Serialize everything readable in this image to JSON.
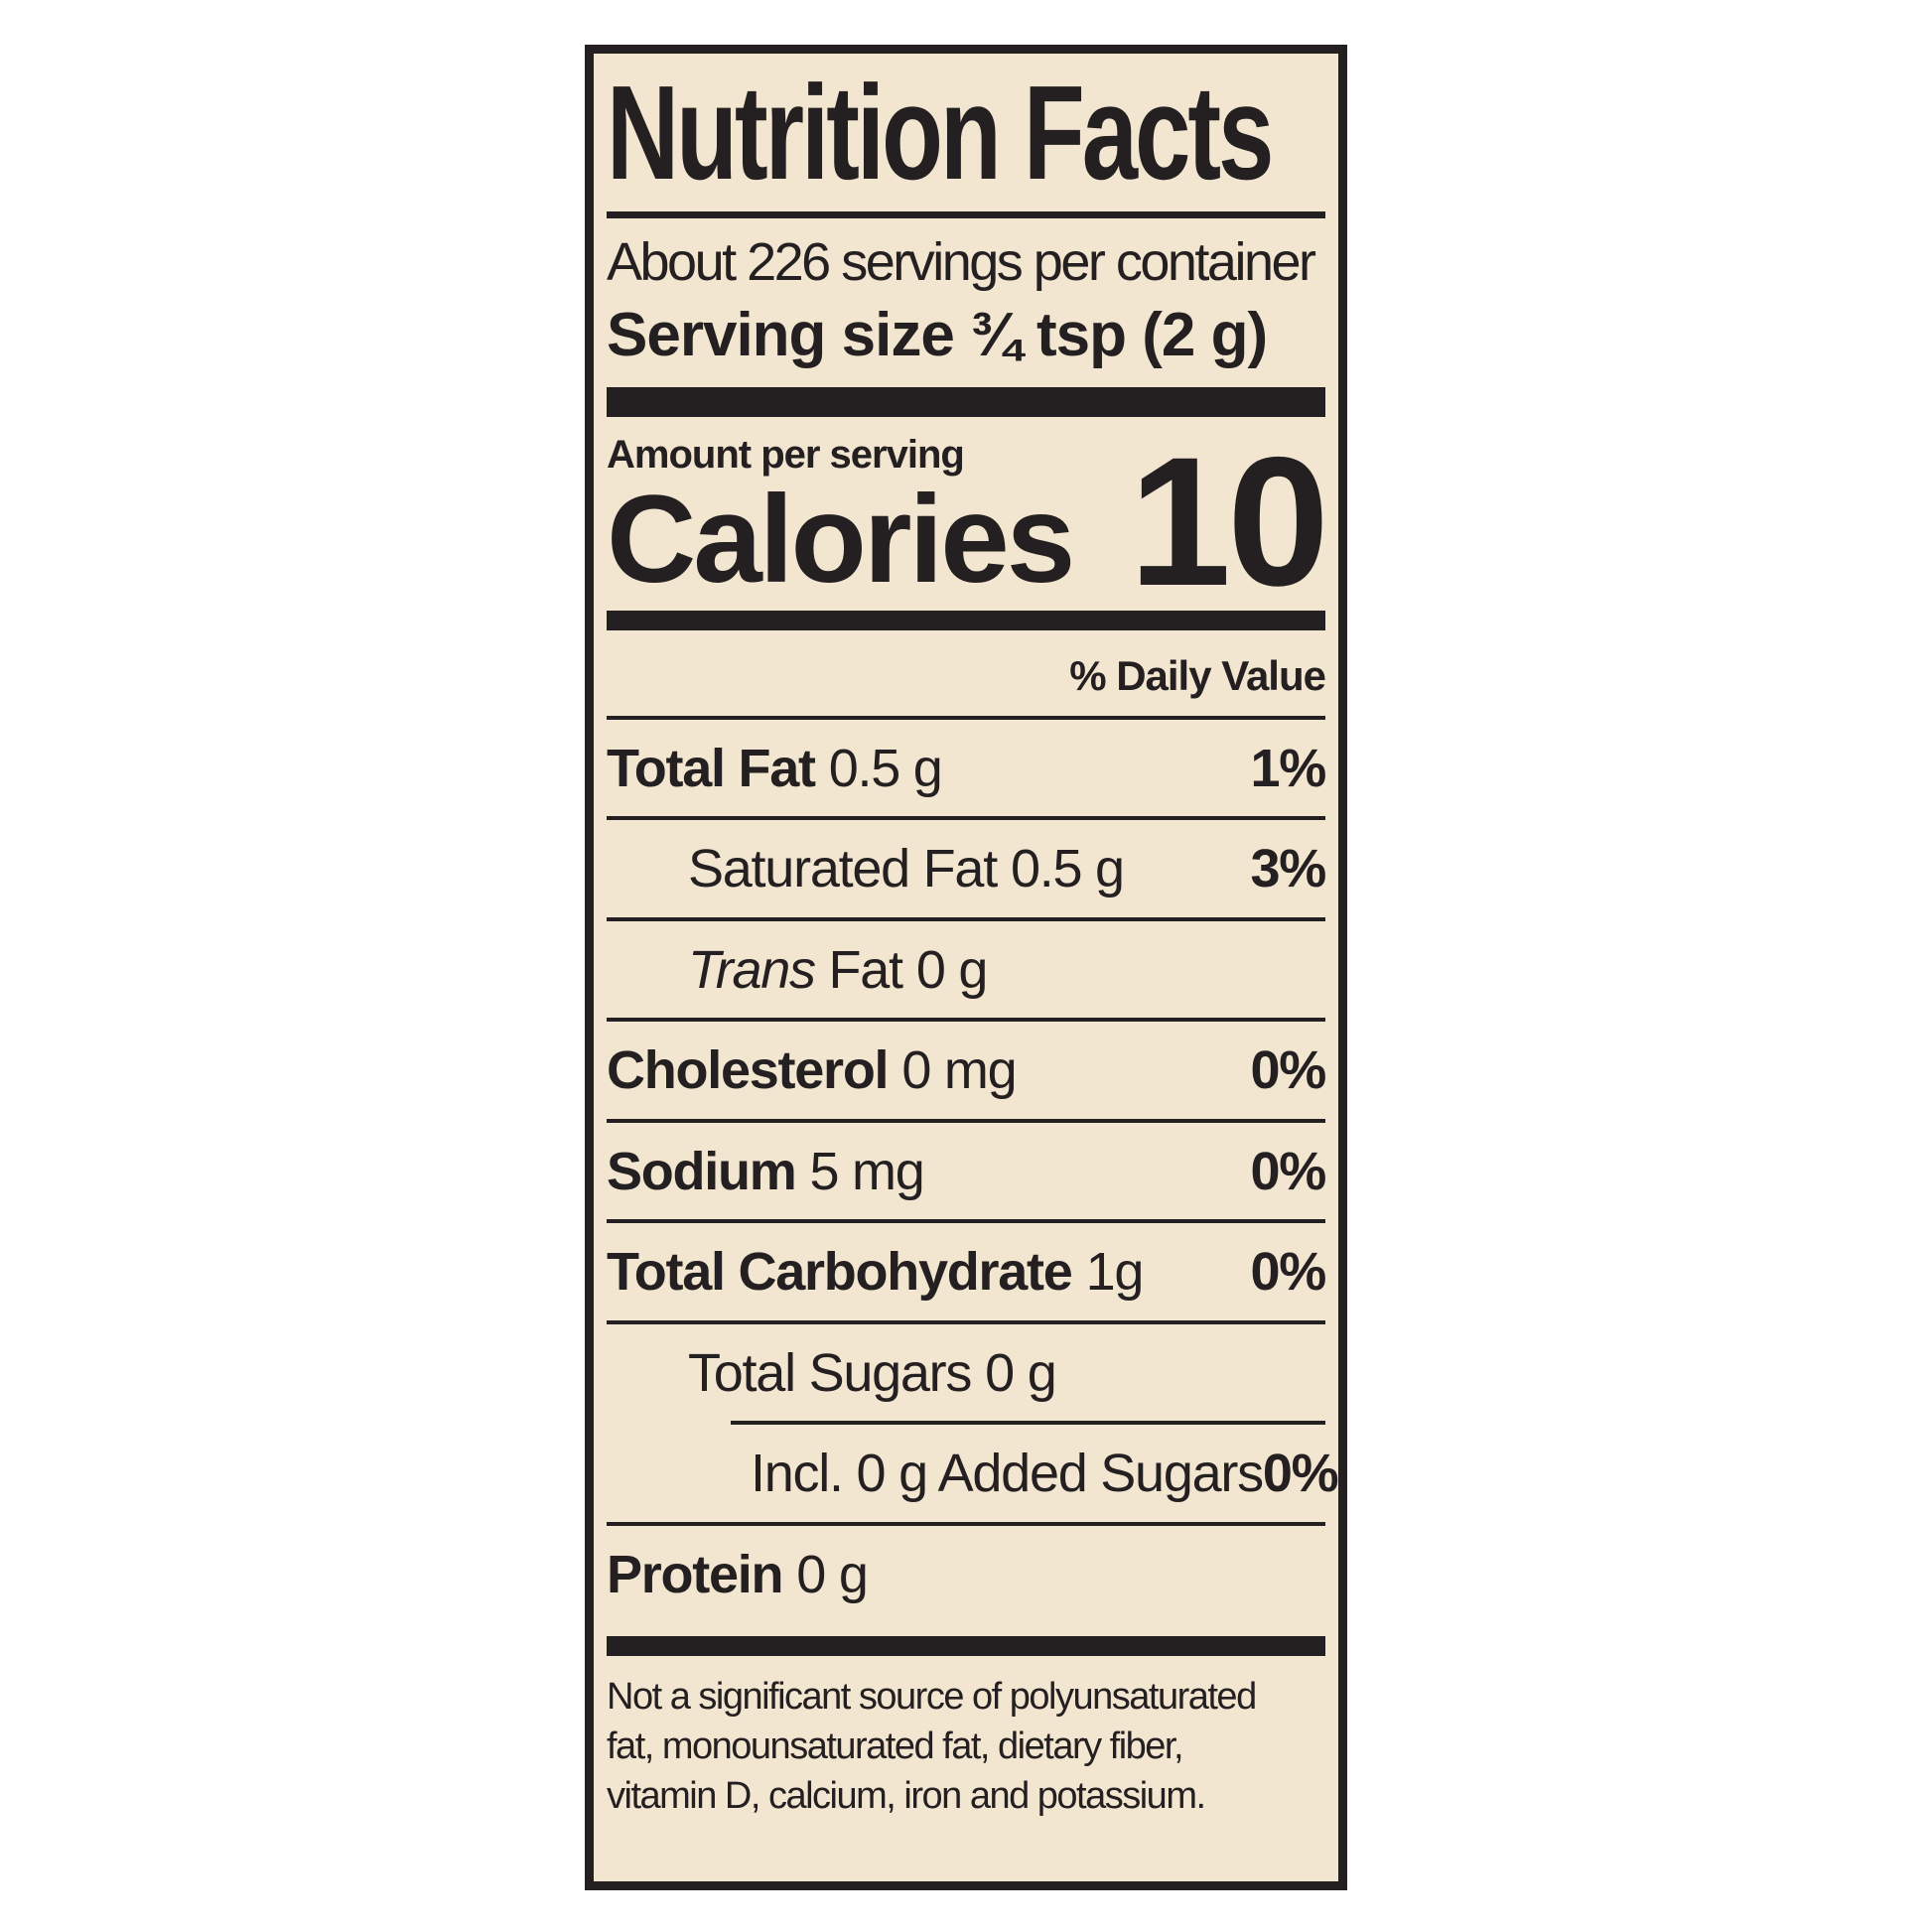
{
  "label": {
    "title": "Nutrition Facts",
    "servings_per_container": "About 226 servings per container",
    "serving_size": "Serving size ¾ tsp (2 g)",
    "amount_per_serving": "Amount per serving",
    "calories_label": "Calories",
    "calories_value": "10",
    "daily_value_header": "% Daily Value",
    "colors": {
      "background": "#f3e6d1",
      "ink": "#242021",
      "page": "#ffffff"
    },
    "rows": [
      {
        "name": "Total Fat",
        "amount": "0.5 g",
        "dv": "1%",
        "indent": 0,
        "bold": true,
        "sep_after": "full"
      },
      {
        "name": "Saturated Fat",
        "amount": "0.5 g",
        "dv": "3%",
        "indent": 1,
        "bold": false,
        "sep_after": "full"
      },
      {
        "italic_prefix": "Trans",
        "name": "Fat",
        "amount": "0 g",
        "dv": "",
        "indent": 1,
        "bold": false,
        "sep_after": "full"
      },
      {
        "name": "Cholesterol",
        "amount": "0 mg",
        "dv": "0%",
        "indent": 0,
        "bold": true,
        "sep_after": "full"
      },
      {
        "name": "Sodium",
        "amount": "5 mg",
        "dv": "0%",
        "indent": 0,
        "bold": true,
        "sep_after": "full"
      },
      {
        "name": "Total Carbohydrate",
        "amount": "1g",
        "dv": "0%",
        "indent": 0,
        "bold": true,
        "sep_after": "full"
      },
      {
        "name": "Total Sugars",
        "amount": "0 g",
        "dv": "",
        "indent": 1,
        "bold": false,
        "sep_after": "indent2"
      },
      {
        "name": "Incl. 0 g Added Sugars",
        "amount": "",
        "dv": "0%",
        "indent": 2,
        "bold": false,
        "sep_after": "full"
      },
      {
        "name": "Protein",
        "amount": "0 g",
        "dv": "",
        "indent": 0,
        "bold": true,
        "sep_after": "none"
      }
    ],
    "footnote_lines": [
      "Not a significant source of polyunsaturated",
      "fat, monounsaturated fat, dietary fiber,",
      "vitamin D, calcium, iron and potassium."
    ]
  }
}
